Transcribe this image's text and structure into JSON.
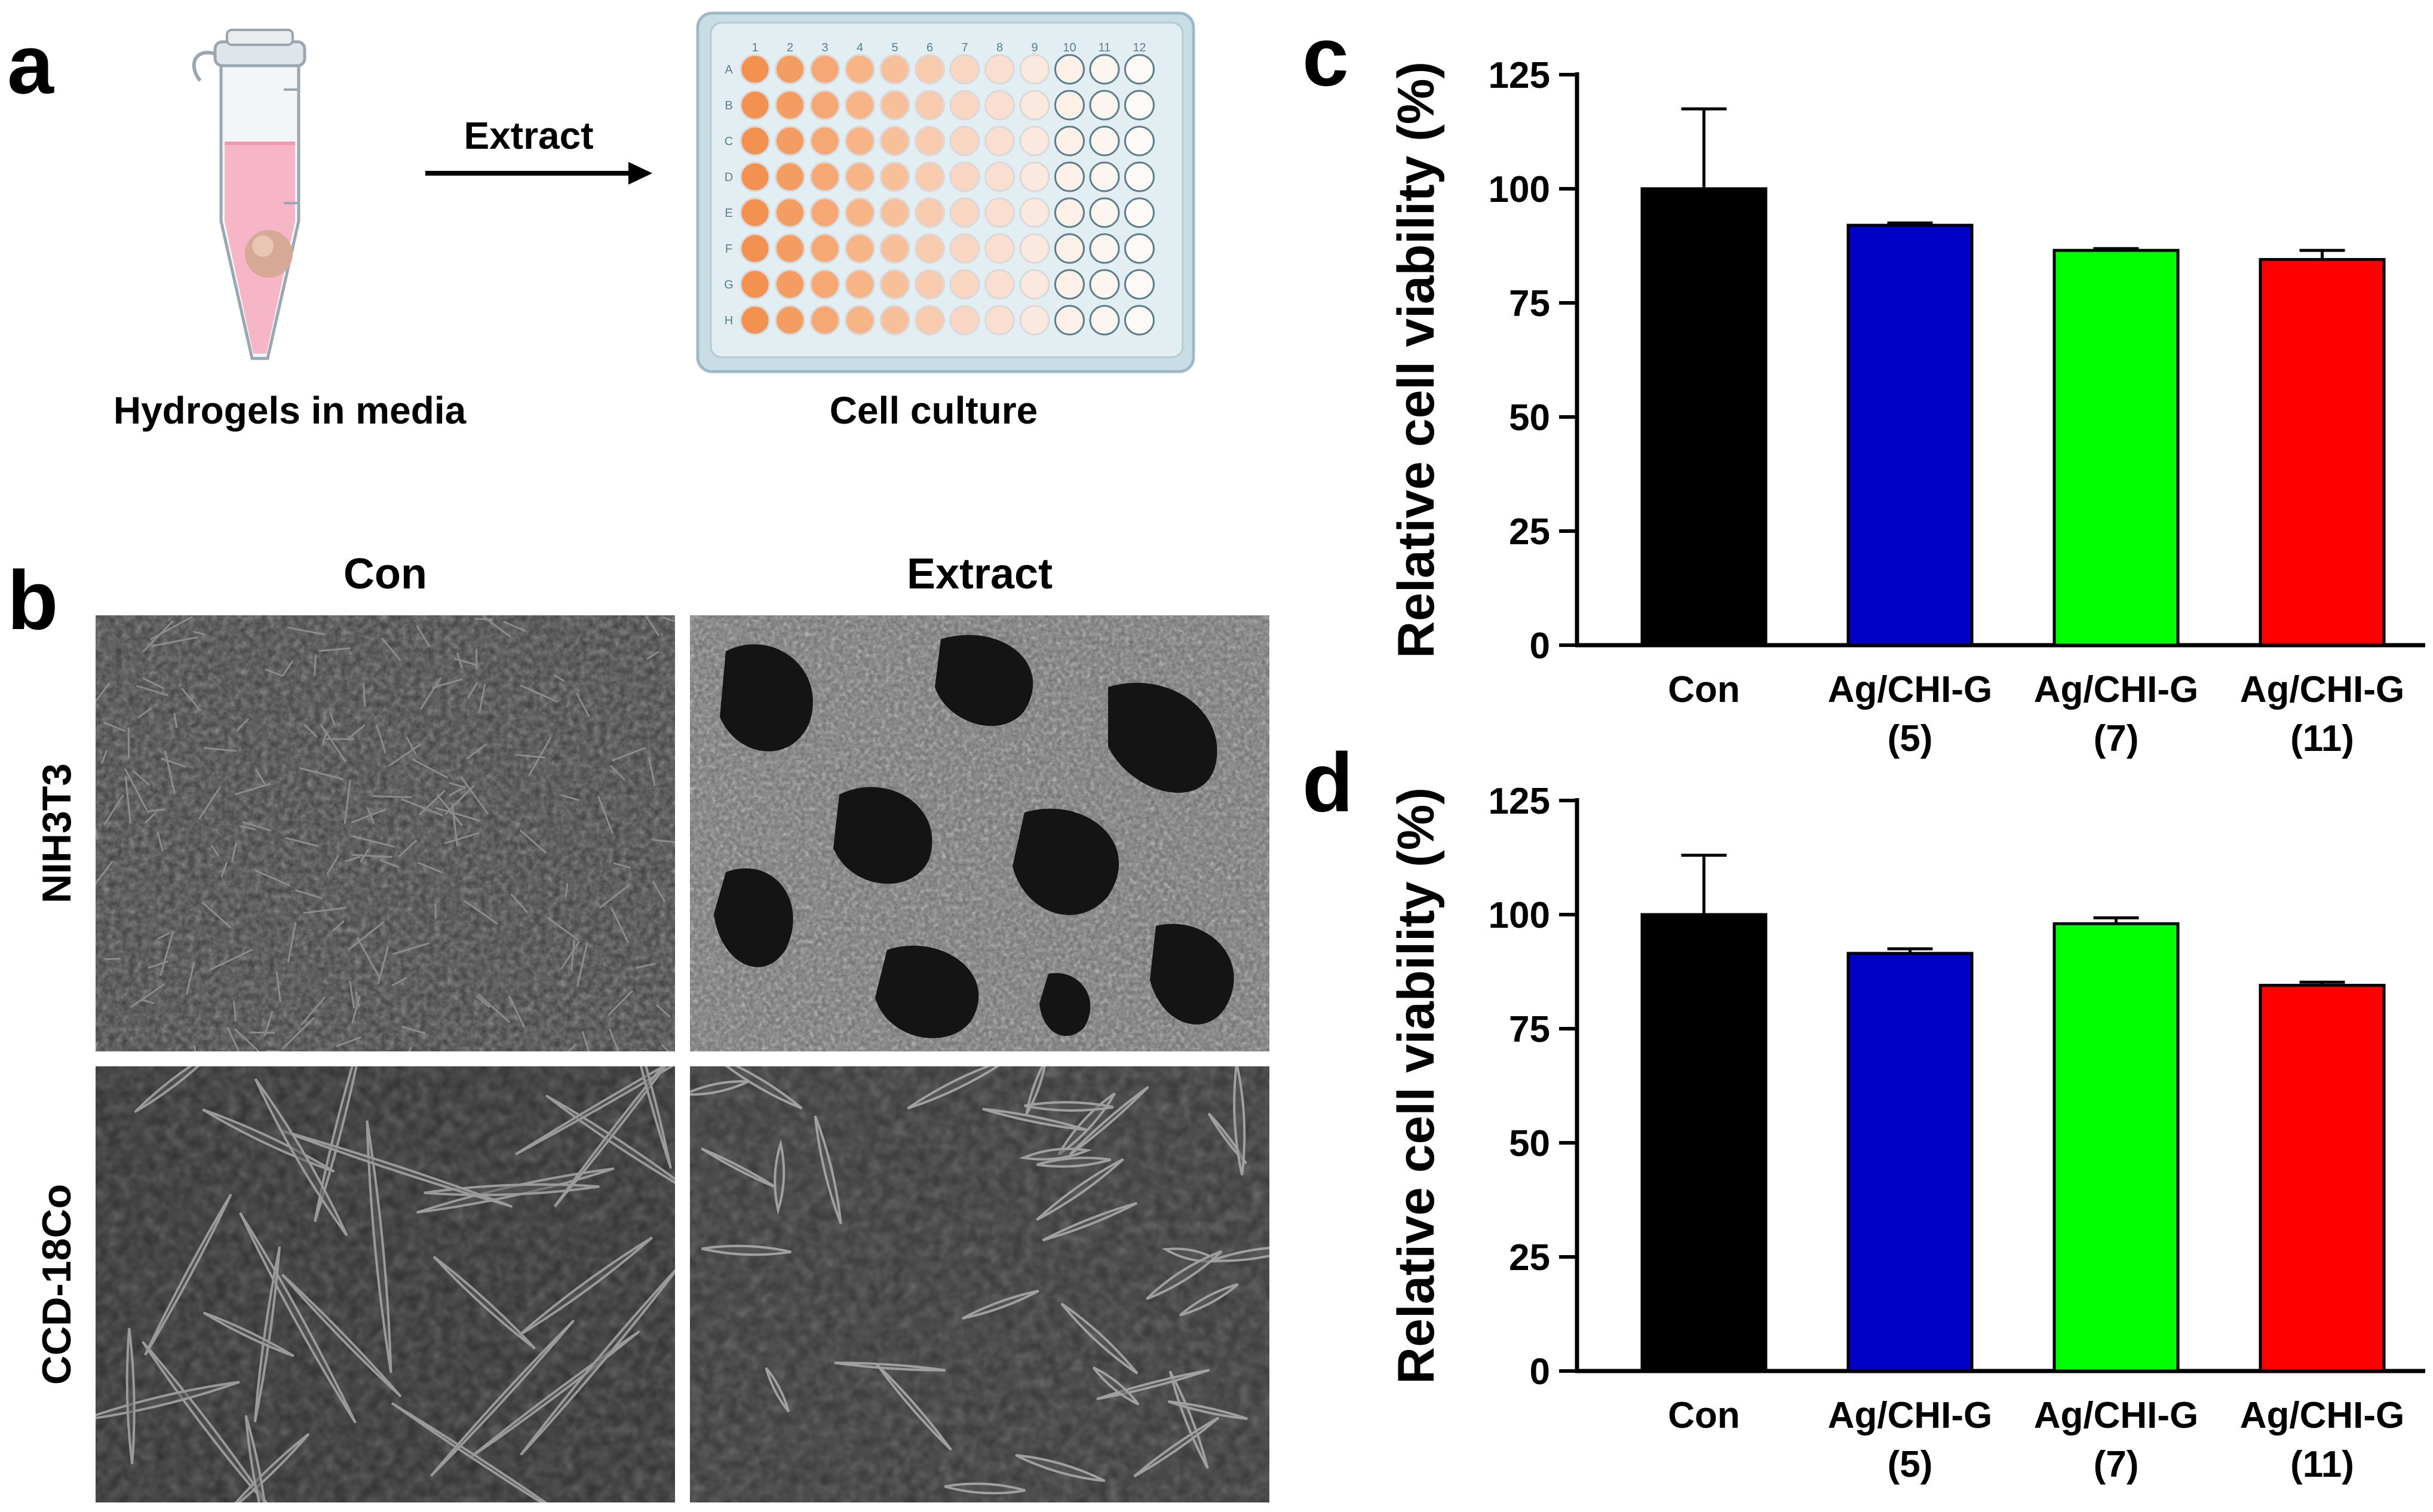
{
  "panels": {
    "a": {
      "letter": "a",
      "tube_caption": "Hydrogels in media",
      "arrow_label": "Extract",
      "plate_caption": "Cell culture",
      "plate_columns": [
        "1",
        "2",
        "3",
        "4",
        "5",
        "6",
        "7",
        "8",
        "9",
        "10",
        "11",
        "12"
      ],
      "plate_rows": [
        "A",
        "B",
        "C",
        "D",
        "E",
        "F",
        "G",
        "H"
      ],
      "well_gradient": [
        "#f39150",
        "#f49d62",
        "#f5a874",
        "#f6b487",
        "#f7c09b",
        "#f8cbae",
        "#f9d6c1",
        "#fadfd0",
        "#fbe9df",
        "#fcf0e8",
        "#fdf5f0",
        "#fdf9f6"
      ]
    },
    "b": {
      "letter": "b",
      "col_headers": [
        "Con",
        "Extract"
      ],
      "row_labels": [
        "NIH3T3",
        "CCD-18Co"
      ]
    },
    "c": {
      "letter": "c"
    },
    "d": {
      "letter": "d"
    }
  },
  "chart_data": [
    {
      "panel": "c",
      "type": "bar",
      "ylabel": "Relative cell viability (%)",
      "ylim": [
        0,
        125
      ],
      "yticks": [
        0,
        25,
        50,
        75,
        100,
        125
      ],
      "categories": [
        [
          "Con"
        ],
        [
          "Ag/CHI-G",
          "(5)"
        ],
        [
          "Ag/CHI-G",
          "(7)"
        ],
        [
          "Ag/CHI-G",
          "(11)"
        ]
      ],
      "values": [
        100,
        92,
        86.5,
        84.5
      ],
      "errors": [
        17.5,
        0.5,
        0.4,
        2
      ],
      "colors": [
        "#000000",
        "#0000c8",
        "#00ff00",
        "#ff0000"
      ]
    },
    {
      "panel": "d",
      "type": "bar",
      "ylabel": "Relative cell viability (%)",
      "ylim": [
        0,
        125
      ],
      "yticks": [
        0,
        25,
        50,
        75,
        100,
        125
      ],
      "categories": [
        [
          "Con"
        ],
        [
          "Ag/CHI-G",
          "(5)"
        ],
        [
          "Ag/CHI-G",
          "(7)"
        ],
        [
          "Ag/CHI-G",
          "(11)"
        ]
      ],
      "values": [
        100,
        91.5,
        98,
        84.5
      ],
      "errors": [
        13,
        1,
        1.3,
        0.7
      ],
      "colors": [
        "#000000",
        "#0000c8",
        "#00ff00",
        "#ff0000"
      ]
    }
  ]
}
